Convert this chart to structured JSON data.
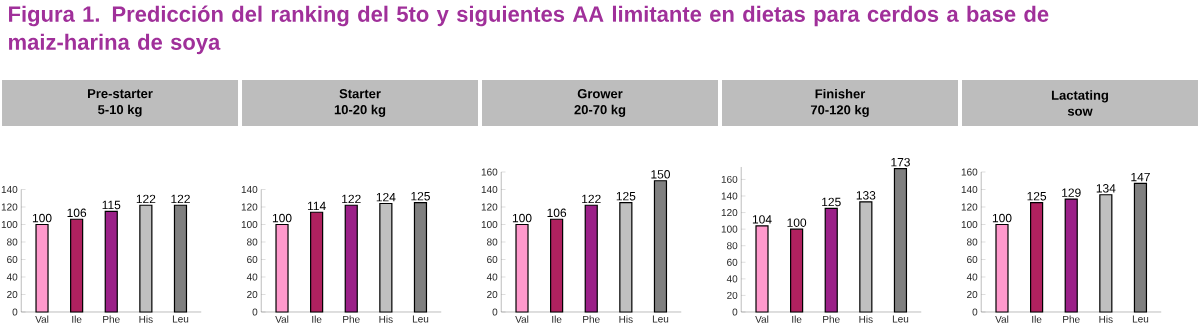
{
  "chart_data": [
    {
      "type": "bar",
      "annotations": [
        "Figura 1. Predicción del ranking del 5to y siguientes AA limitante en dietas para cerdos a base de maiz-harina de soya"
      ],
      "title": "Pre-starter",
      "subtitle": "5-10 kg",
      "categories": [
        "Val",
        "Ile",
        "Phe",
        "His",
        "Leu"
      ],
      "values": [
        100,
        106,
        115,
        122,
        122
      ],
      "colors": [
        "#ff99cc",
        "#b0215f",
        "#9b2088",
        "#c0c0c0",
        "#808080"
      ],
      "ylim": [
        0,
        140
      ],
      "yticks": [
        0,
        20,
        40,
        60,
        80,
        100,
        120,
        140
      ],
      "data_labels": true
    },
    {
      "type": "bar",
      "title": "Starter",
      "subtitle": "10-20 kg",
      "categories": [
        "Val",
        "Ile",
        "Phe",
        "His",
        "Leu"
      ],
      "values": [
        100,
        114,
        122,
        124,
        125
      ],
      "colors": [
        "#ff99cc",
        "#b0215f",
        "#9b2088",
        "#c0c0c0",
        "#808080"
      ],
      "ylim": [
        0,
        140
      ],
      "yticks": [
        0,
        20,
        40,
        60,
        80,
        100,
        120,
        140
      ],
      "data_labels": true
    },
    {
      "type": "bar",
      "title": "Grower",
      "subtitle": "20-70 kg",
      "categories": [
        "Val",
        "Ile",
        "Phe",
        "His",
        "Leu"
      ],
      "values": [
        100,
        106,
        122,
        125,
        150
      ],
      "colors": [
        "#ff99cc",
        "#b0215f",
        "#9b2088",
        "#c0c0c0",
        "#808080"
      ],
      "ylim": [
        0,
        160
      ],
      "yticks": [
        0,
        20,
        40,
        60,
        80,
        100,
        120,
        140,
        160
      ],
      "data_labels": true
    },
    {
      "type": "bar",
      "title": "Finisher",
      "subtitle": "70-120 kg",
      "categories": [
        "Val",
        "Ile",
        "Phe",
        "His",
        "Leu"
      ],
      "values": [
        104,
        100,
        125,
        133,
        173
      ],
      "colors": [
        "#ff99cc",
        "#b0215f",
        "#9b2088",
        "#c0c0c0",
        "#808080"
      ],
      "ylim": [
        0,
        175
      ],
      "yticks": [
        0,
        20,
        40,
        60,
        80,
        100,
        120,
        140,
        160
      ],
      "data_labels": true
    },
    {
      "type": "bar",
      "title": "Lactating",
      "subtitle": "sow",
      "categories": [
        "Val",
        "Ile",
        "Phe",
        "His",
        "Leu"
      ],
      "values": [
        100,
        125,
        129,
        134,
        147
      ],
      "colors": [
        "#ff99cc",
        "#b0215f",
        "#9b2088",
        "#c0c0c0",
        "#808080"
      ],
      "ylim": [
        0,
        160
      ],
      "yticks": [
        0,
        20,
        40,
        60,
        80,
        100,
        120,
        140,
        160
      ],
      "data_labels": true
    }
  ]
}
